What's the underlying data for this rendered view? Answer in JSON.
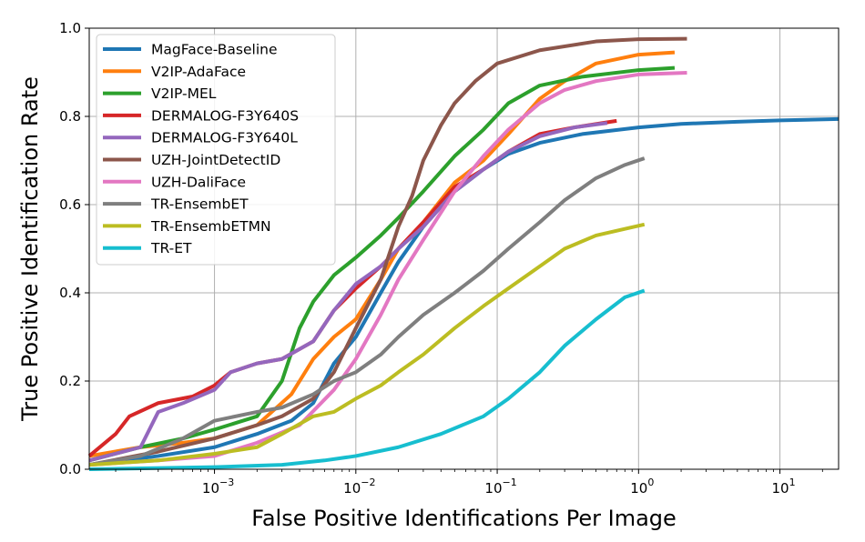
{
  "chart_data": {
    "type": "line",
    "title": "",
    "xlabel": "False Positive Identifications Per Image",
    "ylabel": "True Positive Identification Rate",
    "xscale": "log",
    "xlim": [
      0.00013,
      26
    ],
    "ylim": [
      0,
      1.0
    ],
    "xticks": [
      {
        "value": 0.001,
        "base": "10",
        "exp": "−3"
      },
      {
        "value": 0.01,
        "base": "10",
        "exp": "−2"
      },
      {
        "value": 0.1,
        "base": "10",
        "exp": "−1"
      },
      {
        "value": 1,
        "base": "10",
        "exp": "0"
      },
      {
        "value": 10,
        "base": "10",
        "exp": "1"
      }
    ],
    "yticks": [
      {
        "value": 0.0,
        "label": "0.0"
      },
      {
        "value": 0.2,
        "label": "0.2"
      },
      {
        "value": 0.4,
        "label": "0.4"
      },
      {
        "value": 0.6,
        "label": "0.6"
      },
      {
        "value": 0.8,
        "label": "0.8"
      },
      {
        "value": 1.0,
        "label": "1.0"
      }
    ],
    "grid": true,
    "legend_position": "top-left",
    "series": [
      {
        "name": "MagFace-Baseline",
        "color": "#1f77b4",
        "points": [
          [
            0.00013,
            0.01
          ],
          [
            0.0004,
            0.03
          ],
          [
            0.001,
            0.05
          ],
          [
            0.002,
            0.08
          ],
          [
            0.0035,
            0.11
          ],
          [
            0.005,
            0.15
          ],
          [
            0.007,
            0.24
          ],
          [
            0.01,
            0.3
          ],
          [
            0.015,
            0.4
          ],
          [
            0.02,
            0.47
          ],
          [
            0.03,
            0.55
          ],
          [
            0.05,
            0.63
          ],
          [
            0.08,
            0.68
          ],
          [
            0.12,
            0.715
          ],
          [
            0.2,
            0.74
          ],
          [
            0.4,
            0.76
          ],
          [
            1,
            0.775
          ],
          [
            2,
            0.783
          ],
          [
            5,
            0.788
          ],
          [
            10,
            0.791
          ],
          [
            26,
            0.794
          ]
        ]
      },
      {
        "name": "V2IP-AdaFace",
        "color": "#ff7f0e",
        "points": [
          [
            0.00013,
            0.03
          ],
          [
            0.0003,
            0.05
          ],
          [
            0.0006,
            0.06
          ],
          [
            0.001,
            0.07
          ],
          [
            0.002,
            0.1
          ],
          [
            0.0035,
            0.17
          ],
          [
            0.005,
            0.25
          ],
          [
            0.007,
            0.3
          ],
          [
            0.01,
            0.34
          ],
          [
            0.015,
            0.43
          ],
          [
            0.02,
            0.5
          ],
          [
            0.03,
            0.56
          ],
          [
            0.05,
            0.65
          ],
          [
            0.08,
            0.7
          ],
          [
            0.12,
            0.76
          ],
          [
            0.2,
            0.84
          ],
          [
            0.3,
            0.88
          ],
          [
            0.5,
            0.92
          ],
          [
            1,
            0.94
          ],
          [
            1.8,
            0.945
          ]
        ]
      },
      {
        "name": "V2IP-MEL",
        "color": "#2ca02c",
        "points": [
          [
            0.00013,
            0.02
          ],
          [
            0.0003,
            0.05
          ],
          [
            0.0006,
            0.07
          ],
          [
            0.001,
            0.09
          ],
          [
            0.002,
            0.12
          ],
          [
            0.003,
            0.2
          ],
          [
            0.004,
            0.32
          ],
          [
            0.005,
            0.38
          ],
          [
            0.007,
            0.44
          ],
          [
            0.01,
            0.48
          ],
          [
            0.015,
            0.53
          ],
          [
            0.02,
            0.57
          ],
          [
            0.03,
            0.63
          ],
          [
            0.05,
            0.71
          ],
          [
            0.08,
            0.77
          ],
          [
            0.12,
            0.83
          ],
          [
            0.2,
            0.87
          ],
          [
            0.4,
            0.89
          ],
          [
            1,
            0.905
          ],
          [
            1.8,
            0.91
          ]
        ]
      },
      {
        "name": "DERMALOG-F3Y640S",
        "color": "#d62728",
        "points": [
          [
            0.00013,
            0.03
          ],
          [
            0.0002,
            0.08
          ],
          [
            0.00025,
            0.12
          ],
          [
            0.0004,
            0.15
          ],
          [
            0.0007,
            0.165
          ],
          [
            0.001,
            0.19
          ],
          [
            0.0013,
            0.22
          ],
          [
            0.002,
            0.24
          ],
          [
            0.003,
            0.25
          ],
          [
            0.005,
            0.29
          ],
          [
            0.007,
            0.36
          ],
          [
            0.01,
            0.41
          ],
          [
            0.015,
            0.46
          ],
          [
            0.02,
            0.5
          ],
          [
            0.03,
            0.56
          ],
          [
            0.05,
            0.64
          ],
          [
            0.08,
            0.68
          ],
          [
            0.12,
            0.72
          ],
          [
            0.2,
            0.76
          ],
          [
            0.35,
            0.775
          ],
          [
            0.7,
            0.79
          ]
        ]
      },
      {
        "name": "DERMALOG-F3Y640L",
        "color": "#9467bd",
        "points": [
          [
            0.00013,
            0.02
          ],
          [
            0.0003,
            0.05
          ],
          [
            0.0004,
            0.13
          ],
          [
            0.0006,
            0.15
          ],
          [
            0.001,
            0.18
          ],
          [
            0.0013,
            0.22
          ],
          [
            0.002,
            0.24
          ],
          [
            0.003,
            0.25
          ],
          [
            0.005,
            0.29
          ],
          [
            0.007,
            0.36
          ],
          [
            0.01,
            0.42
          ],
          [
            0.015,
            0.46
          ],
          [
            0.02,
            0.5
          ],
          [
            0.03,
            0.55
          ],
          [
            0.05,
            0.63
          ],
          [
            0.08,
            0.68
          ],
          [
            0.12,
            0.72
          ],
          [
            0.2,
            0.755
          ],
          [
            0.35,
            0.775
          ],
          [
            0.6,
            0.785
          ]
        ]
      },
      {
        "name": "UZH-JointDetectID",
        "color": "#8c564b",
        "points": [
          [
            0.00013,
            0.01
          ],
          [
            0.0004,
            0.04
          ],
          [
            0.001,
            0.07
          ],
          [
            0.002,
            0.1
          ],
          [
            0.003,
            0.12
          ],
          [
            0.005,
            0.16
          ],
          [
            0.007,
            0.22
          ],
          [
            0.01,
            0.32
          ],
          [
            0.015,
            0.43
          ],
          [
            0.02,
            0.55
          ],
          [
            0.025,
            0.62
          ],
          [
            0.03,
            0.7
          ],
          [
            0.04,
            0.78
          ],
          [
            0.05,
            0.83
          ],
          [
            0.07,
            0.88
          ],
          [
            0.1,
            0.92
          ],
          [
            0.2,
            0.95
          ],
          [
            0.5,
            0.97
          ],
          [
            1,
            0.975
          ],
          [
            2.2,
            0.976
          ]
        ]
      },
      {
        "name": "UZH-DaliFace",
        "color": "#e377c2",
        "points": [
          [
            0.00013,
            0.01
          ],
          [
            0.0004,
            0.02
          ],
          [
            0.001,
            0.03
          ],
          [
            0.002,
            0.06
          ],
          [
            0.004,
            0.1
          ],
          [
            0.007,
            0.18
          ],
          [
            0.01,
            0.25
          ],
          [
            0.015,
            0.35
          ],
          [
            0.02,
            0.43
          ],
          [
            0.03,
            0.52
          ],
          [
            0.05,
            0.63
          ],
          [
            0.08,
            0.71
          ],
          [
            0.12,
            0.77
          ],
          [
            0.2,
            0.83
          ],
          [
            0.3,
            0.86
          ],
          [
            0.5,
            0.88
          ],
          [
            1,
            0.895
          ],
          [
            2.2,
            0.899
          ]
        ]
      },
      {
        "name": "TR-EnsembET",
        "color": "#7f7f7f",
        "points": [
          [
            0.00013,
            0.01
          ],
          [
            0.0003,
            0.03
          ],
          [
            0.0006,
            0.07
          ],
          [
            0.001,
            0.11
          ],
          [
            0.002,
            0.13
          ],
          [
            0.003,
            0.14
          ],
          [
            0.005,
            0.17
          ],
          [
            0.007,
            0.2
          ],
          [
            0.01,
            0.22
          ],
          [
            0.015,
            0.26
          ],
          [
            0.02,
            0.3
          ],
          [
            0.03,
            0.35
          ],
          [
            0.05,
            0.4
          ],
          [
            0.08,
            0.45
          ],
          [
            0.12,
            0.5
          ],
          [
            0.2,
            0.56
          ],
          [
            0.3,
            0.61
          ],
          [
            0.5,
            0.66
          ],
          [
            0.8,
            0.69
          ],
          [
            1.1,
            0.705
          ]
        ]
      },
      {
        "name": "TR-EnsembETMN",
        "color": "#bcbd22",
        "points": [
          [
            0.00013,
            0.01
          ],
          [
            0.0004,
            0.02
          ],
          [
            0.001,
            0.035
          ],
          [
            0.002,
            0.05
          ],
          [
            0.003,
            0.08
          ],
          [
            0.005,
            0.12
          ],
          [
            0.007,
            0.13
          ],
          [
            0.01,
            0.16
          ],
          [
            0.015,
            0.19
          ],
          [
            0.02,
            0.22
          ],
          [
            0.03,
            0.26
          ],
          [
            0.05,
            0.32
          ],
          [
            0.08,
            0.37
          ],
          [
            0.12,
            0.41
          ],
          [
            0.2,
            0.46
          ],
          [
            0.3,
            0.5
          ],
          [
            0.5,
            0.53
          ],
          [
            0.8,
            0.545
          ],
          [
            1.1,
            0.555
          ]
        ]
      },
      {
        "name": "TR-ET",
        "color": "#17becf",
        "points": [
          [
            0.00013,
            0.0
          ],
          [
            0.001,
            0.005
          ],
          [
            0.003,
            0.01
          ],
          [
            0.006,
            0.02
          ],
          [
            0.01,
            0.03
          ],
          [
            0.02,
            0.05
          ],
          [
            0.04,
            0.08
          ],
          [
            0.08,
            0.12
          ],
          [
            0.12,
            0.16
          ],
          [
            0.2,
            0.22
          ],
          [
            0.3,
            0.28
          ],
          [
            0.5,
            0.34
          ],
          [
            0.8,
            0.39
          ],
          [
            1.1,
            0.405
          ]
        ]
      }
    ]
  }
}
